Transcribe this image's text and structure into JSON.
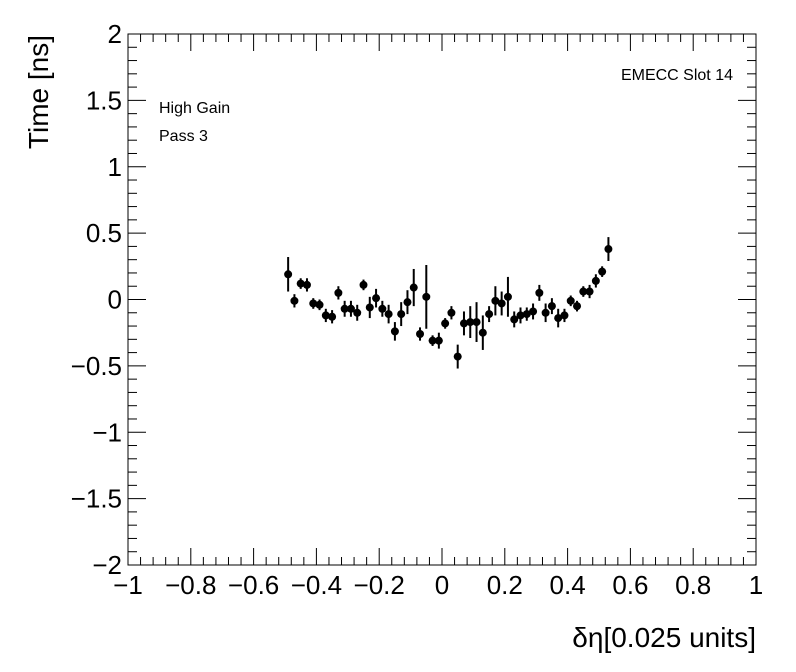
{
  "chart_data": {
    "type": "scatter",
    "xlabel": "δη[0.025 units]",
    "ylabel": "Time [ns]",
    "xlim": [
      -1,
      1
    ],
    "ylim": [
      -2,
      2
    ],
    "x_ticks": [
      -1,
      -0.8,
      -0.6,
      -0.4,
      -0.2,
      0,
      0.2,
      0.4,
      0.6,
      0.8,
      1
    ],
    "x_tick_labels": [
      "−1",
      "−0.8",
      "−0.6",
      "−0.4",
      "−0.2",
      "0",
      "0.2",
      "0.4",
      "0.6",
      "0.8",
      "1"
    ],
    "y_ticks": [
      -2,
      -1.5,
      -1,
      -0.5,
      0,
      0.5,
      1,
      1.5,
      2
    ],
    "y_tick_labels": [
      "−2",
      "−1.5",
      "−1",
      "−0.5",
      "0",
      "0.5",
      "1",
      "1.5",
      "2"
    ],
    "annotations": {
      "top_right": "EMECC Slot 14",
      "gain": "High Gain",
      "pass": "Pass 3"
    },
    "grid": false,
    "marker_color": "#000000",
    "points": [
      {
        "x": -0.49,
        "y": 0.19,
        "err": 0.13
      },
      {
        "x": -0.47,
        "y": -0.01,
        "err": 0.05
      },
      {
        "x": -0.45,
        "y": 0.12,
        "err": 0.04
      },
      {
        "x": -0.43,
        "y": 0.11,
        "err": 0.05
      },
      {
        "x": -0.41,
        "y": -0.03,
        "err": 0.04
      },
      {
        "x": -0.39,
        "y": -0.04,
        "err": 0.04
      },
      {
        "x": -0.37,
        "y": -0.12,
        "err": 0.05
      },
      {
        "x": -0.35,
        "y": -0.13,
        "err": 0.05
      },
      {
        "x": -0.33,
        "y": 0.05,
        "err": 0.05
      },
      {
        "x": -0.31,
        "y": -0.07,
        "err": 0.06
      },
      {
        "x": -0.29,
        "y": -0.07,
        "err": 0.06
      },
      {
        "x": -0.27,
        "y": -0.1,
        "err": 0.06
      },
      {
        "x": -0.25,
        "y": 0.11,
        "err": 0.04
      },
      {
        "x": -0.23,
        "y": -0.06,
        "err": 0.08
      },
      {
        "x": -0.21,
        "y": 0.01,
        "err": 0.07
      },
      {
        "x": -0.19,
        "y": -0.07,
        "err": 0.06
      },
      {
        "x": -0.17,
        "y": -0.11,
        "err": 0.07
      },
      {
        "x": -0.15,
        "y": -0.24,
        "err": 0.07
      },
      {
        "x": -0.13,
        "y": -0.11,
        "err": 0.09
      },
      {
        "x": -0.11,
        "y": -0.02,
        "err": 0.09
      },
      {
        "x": -0.09,
        "y": 0.09,
        "err": 0.14
      },
      {
        "x": -0.07,
        "y": -0.26,
        "err": 0.05
      },
      {
        "x": -0.05,
        "y": 0.02,
        "err": 0.24
      },
      {
        "x": -0.03,
        "y": -0.31,
        "err": 0.04
      },
      {
        "x": -0.01,
        "y": -0.31,
        "err": 0.06
      },
      {
        "x": 0.01,
        "y": -0.18,
        "err": 0.04
      },
      {
        "x": 0.03,
        "y": -0.1,
        "err": 0.05
      },
      {
        "x": 0.05,
        "y": -0.43,
        "err": 0.09
      },
      {
        "x": 0.07,
        "y": -0.18,
        "err": 0.09
      },
      {
        "x": 0.09,
        "y": -0.17,
        "err": 0.12
      },
      {
        "x": 0.11,
        "y": -0.17,
        "err": 0.15
      },
      {
        "x": 0.13,
        "y": -0.25,
        "err": 0.13
      },
      {
        "x": 0.15,
        "y": -0.11,
        "err": 0.06
      },
      {
        "x": 0.17,
        "y": -0.01,
        "err": 0.11
      },
      {
        "x": 0.19,
        "y": -0.03,
        "err": 0.09
      },
      {
        "x": 0.21,
        "y": 0.02,
        "err": 0.15
      },
      {
        "x": 0.23,
        "y": -0.15,
        "err": 0.06
      },
      {
        "x": 0.25,
        "y": -0.12,
        "err": 0.06
      },
      {
        "x": 0.27,
        "y": -0.11,
        "err": 0.05
      },
      {
        "x": 0.29,
        "y": -0.09,
        "err": 0.06
      },
      {
        "x": 0.31,
        "y": 0.05,
        "err": 0.06
      },
      {
        "x": 0.33,
        "y": -0.1,
        "err": 0.07
      },
      {
        "x": 0.35,
        "y": -0.05,
        "err": 0.06
      },
      {
        "x": 0.37,
        "y": -0.14,
        "err": 0.07
      },
      {
        "x": 0.39,
        "y": -0.12,
        "err": 0.05
      },
      {
        "x": 0.41,
        "y": -0.01,
        "err": 0.04
      },
      {
        "x": 0.43,
        "y": -0.05,
        "err": 0.04
      },
      {
        "x": 0.45,
        "y": 0.06,
        "err": 0.04
      },
      {
        "x": 0.47,
        "y": 0.06,
        "err": 0.05
      },
      {
        "x": 0.49,
        "y": 0.14,
        "err": 0.05
      },
      {
        "x": 0.51,
        "y": 0.21,
        "err": 0.04
      },
      {
        "x": 0.53,
        "y": 0.38,
        "err": 0.09
      }
    ]
  }
}
